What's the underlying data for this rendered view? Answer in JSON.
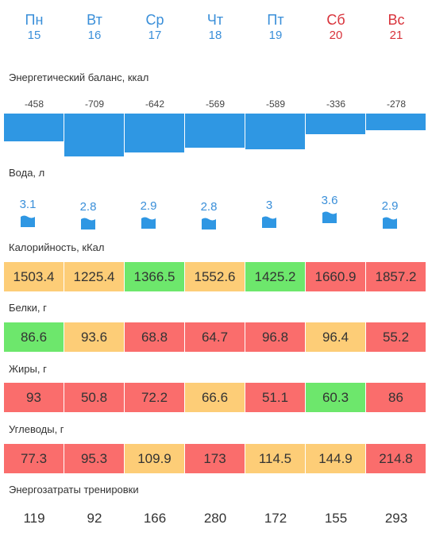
{
  "days": [
    {
      "name": "Пн",
      "date": "15",
      "weekend": false
    },
    {
      "name": "Вт",
      "date": "16",
      "weekend": false
    },
    {
      "name": "Ср",
      "date": "17",
      "weekend": false
    },
    {
      "name": "Чт",
      "date": "18",
      "weekend": false
    },
    {
      "name": "Пт",
      "date": "19",
      "weekend": false
    },
    {
      "name": "Сб",
      "date": "20",
      "weekend": true
    },
    {
      "name": "Вс",
      "date": "21",
      "weekend": true
    }
  ],
  "energy_balance": {
    "label": "Энергетический баланс, ккал",
    "values": [
      "-458",
      "-709",
      "-642",
      "-569",
      "-589",
      "-336",
      "-278"
    ],
    "bar_color": "#2f97e3"
  },
  "water": {
    "label": "Вода, л",
    "values": [
      "3.1",
      "2.8",
      "2.9",
      "2.8",
      "3",
      "3.6",
      "2.9"
    ],
    "icon": "water-glass-icon"
  },
  "calories": {
    "label": "Калорийность, кКал",
    "values": [
      "1503.4",
      "1225.4",
      "1366.5",
      "1552.6",
      "1425.2",
      "1660.9",
      "1857.2"
    ],
    "statuses": [
      "yellow",
      "yellow",
      "green",
      "yellow",
      "green",
      "red",
      "red"
    ]
  },
  "proteins": {
    "label": "Белки, г",
    "values": [
      "86.6",
      "93.6",
      "68.8",
      "64.7",
      "96.8",
      "96.4",
      "55.2"
    ],
    "statuses": [
      "green",
      "yellow",
      "red",
      "red",
      "red",
      "yellow",
      "red"
    ]
  },
  "fats": {
    "label": "Жиры, г",
    "values": [
      "93",
      "50.8",
      "72.2",
      "66.6",
      "51.1",
      "60.3",
      "86"
    ],
    "statuses": [
      "red",
      "red",
      "red",
      "yellow",
      "red",
      "green",
      "red"
    ]
  },
  "carbs": {
    "label": "Углеводы, г",
    "values": [
      "77.3",
      "95.3",
      "109.9",
      "173",
      "114.5",
      "144.9",
      "214.8"
    ],
    "statuses": [
      "red",
      "red",
      "yellow",
      "red",
      "yellow",
      "yellow",
      "red"
    ]
  },
  "training": {
    "label": "Энергозатраты тренировки",
    "values": [
      "119",
      "92",
      "166",
      "280",
      "172",
      "155",
      "293"
    ]
  },
  "colors": {
    "green": "#6de76c",
    "yellow": "#fdcd77",
    "red": "#fa6d6c",
    "accent": "#3a8fd9",
    "weekend": "#d8333b"
  }
}
